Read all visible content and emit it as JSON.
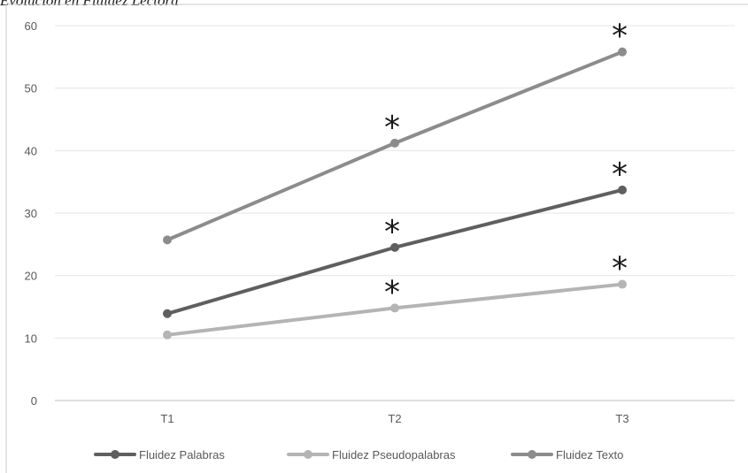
{
  "caption": "Evolución en Fluidez Lectora",
  "chart_data": {
    "type": "line",
    "categories": [
      "T1",
      "T2",
      "T3"
    ],
    "ylim": [
      0,
      60
    ],
    "yticks": [
      0,
      10,
      20,
      30,
      40,
      50,
      60
    ],
    "grid": true,
    "legend_position": "bottom",
    "series": [
      {
        "name": "Fluidez Palabras",
        "values": [
          13.9,
          24.5,
          33.7
        ],
        "color": "#5f5f5f",
        "significance": [
          "",
          "*",
          "*"
        ]
      },
      {
        "name": "Fluidez Pseudopalabras",
        "values": [
          10.5,
          14.8,
          18.6
        ],
        "color": "#b4b4b4",
        "significance": [
          "",
          "*",
          "*"
        ]
      },
      {
        "name": "Fluidez Texto",
        "values": [
          25.7,
          41.2,
          55.8
        ],
        "color": "#8c8c8c",
        "significance": [
          "",
          "*",
          "*"
        ]
      }
    ]
  }
}
